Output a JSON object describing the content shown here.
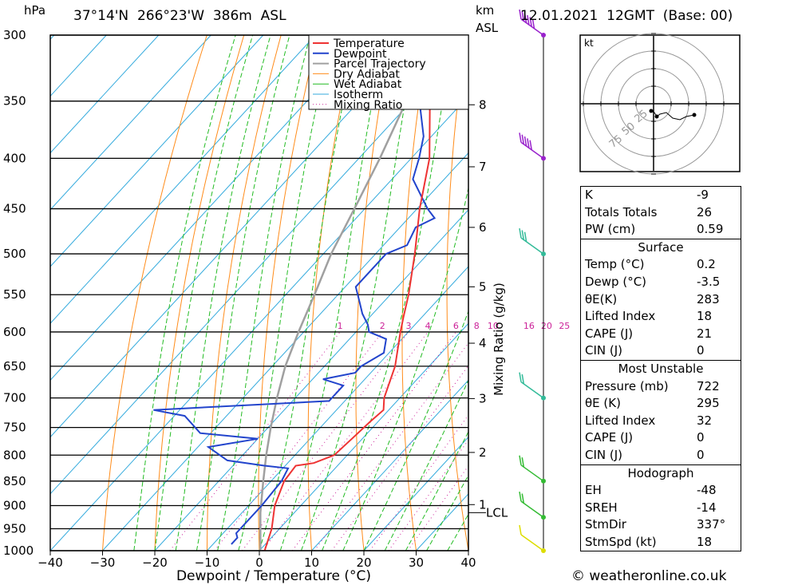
{
  "header": {
    "unit_left": "hPa",
    "location": "37°14'N  266°23'W  386m  ASL",
    "unit_right_top": "km",
    "unit_right_bottom": "ASL",
    "datetime": "12.01.2021  12GMT  (Base: 00)"
  },
  "chart_data": {
    "type": "line",
    "subtype": "skew-t log-p",
    "xlabel": "Dewpoint / Temperature (°C)",
    "ylabel_left": "hPa",
    "ylabel_right": "Mixing Ratio (g/kg)",
    "xlim": [
      -40,
      40
    ],
    "ylim": [
      1000,
      300
    ],
    "x_ticks": [
      -40,
      -30,
      -20,
      -10,
      0,
      10,
      20,
      30,
      40
    ],
    "pressure_levels": [
      300,
      350,
      400,
      450,
      500,
      550,
      600,
      650,
      700,
      750,
      800,
      850,
      900,
      950,
      1000
    ],
    "km_ticks": [
      {
        "label": "8",
        "p": 353
      },
      {
        "label": "7",
        "p": 408
      },
      {
        "label": "6",
        "p": 470
      },
      {
        "label": "5",
        "p": 540
      },
      {
        "label": "4",
        "p": 616
      },
      {
        "label": "3",
        "p": 701
      },
      {
        "label": "2",
        "p": 795
      },
      {
        "label": "1",
        "p": 898
      }
    ],
    "lcl": {
      "label": "LCL",
      "p": 915
    },
    "mixing_ratio_labels": [
      "1",
      "2",
      "3",
      "4",
      "6",
      "8",
      "10",
      "16",
      "20",
      "25"
    ],
    "mixing_ratio_values": [
      1,
      2,
      3,
      4,
      6,
      8,
      10,
      16,
      20,
      25
    ],
    "legend": [
      "Temperature",
      "Dewpoint",
      "Parcel Trajectory",
      "Dry Adiabat",
      "Wet Adiabat",
      "Isotherm",
      "Mixing Ratio"
    ],
    "legend_position": "top-right of plot",
    "colors": {
      "temperature": "#ee3333",
      "dewpoint": "#2244cc",
      "parcel": "#a0a0a0",
      "dry_adiabat": "#ff8c1a",
      "wet_adiabat": "#22bb22",
      "isotherm": "#33aadd",
      "mixing_ratio": "#cc2299",
      "wind_barb_upper": "#9922cc",
      "wind_barb_mid": "#33bb99",
      "wind_barb_low": "#33bb33",
      "wind_barb_surface": "#dddd00"
    },
    "series": [
      {
        "name": "Temperature",
        "points": [
          [
            1000,
            1.0
          ],
          [
            950,
            -1.5
          ],
          [
            900,
            -5.0
          ],
          [
            850,
            -7.5
          ],
          [
            820,
            -8.0
          ],
          [
            815,
            -5.0
          ],
          [
            800,
            -2.5
          ],
          [
            770,
            -2.0
          ],
          [
            740,
            -1.5
          ],
          [
            720,
            -1.0
          ],
          [
            700,
            -3.0
          ],
          [
            650,
            -6.5
          ],
          [
            600,
            -11.5
          ],
          [
            580,
            -13.5
          ],
          [
            550,
            -16.5
          ],
          [
            500,
            -22.5
          ],
          [
            450,
            -29.5
          ],
          [
            400,
            -36.5
          ],
          [
            350,
            -46.5
          ],
          [
            330,
            -51.5
          ],
          [
            300,
            -55.5
          ]
        ]
      },
      {
        "name": "Dewpoint",
        "points": [
          [
            985,
            -6.5
          ],
          [
            970,
            -6.5
          ],
          [
            960,
            -7.5
          ],
          [
            900,
            -7.5
          ],
          [
            850,
            -8.0
          ],
          [
            825,
            -9.0
          ],
          [
            820,
            -14.0
          ],
          [
            810,
            -22.0
          ],
          [
            785,
            -28.0
          ],
          [
            770,
            -20.0
          ],
          [
            760,
            -32.0
          ],
          [
            730,
            -38.0
          ],
          [
            720,
            -45.0
          ],
          [
            705,
            -13.0
          ],
          [
            680,
            -13.0
          ],
          [
            670,
            -18.0
          ],
          [
            660,
            -13.0
          ],
          [
            650,
            -13.0
          ],
          [
            630,
            -11.0
          ],
          [
            610,
            -13.0
          ],
          [
            600,
            -17.5
          ],
          [
            590,
            -19.0
          ],
          [
            575,
            -22.0
          ],
          [
            560,
            -24.5
          ],
          [
            540,
            -28.0
          ],
          [
            500,
            -28.0
          ],
          [
            490,
            -25.5
          ],
          [
            470,
            -27.0
          ],
          [
            460,
            -25.0
          ],
          [
            450,
            -28.0
          ],
          [
            420,
            -36.0
          ],
          [
            400,
            -38.5
          ],
          [
            380,
            -41.5
          ],
          [
            350,
            -48.5
          ],
          [
            330,
            -53.0
          ],
          [
            320,
            -52.0
          ],
          [
            300,
            -54.0
          ]
        ]
      },
      {
        "name": "Parcel Trajectory",
        "points": [
          [
            1000,
            0.2
          ],
          [
            915,
            -6.5
          ],
          [
            850,
            -11.5
          ],
          [
            800,
            -15.5
          ],
          [
            750,
            -19.5
          ],
          [
            700,
            -23.5
          ],
          [
            650,
            -27.5
          ],
          [
            600,
            -31.0
          ],
          [
            550,
            -34.5
          ],
          [
            500,
            -38.5
          ],
          [
            450,
            -42.0
          ],
          [
            400,
            -46.0
          ],
          [
            350,
            -51.0
          ],
          [
            300,
            -57.0
          ]
        ]
      }
    ],
    "wind_barbs": [
      {
        "p": 300,
        "kt": 60,
        "color": "wind_barb_upper"
      },
      {
        "p": 400,
        "kt": 50,
        "color": "wind_barb_upper"
      },
      {
        "p": 500,
        "kt": 25,
        "color": "wind_barb_mid"
      },
      {
        "p": 700,
        "kt": 20,
        "color": "wind_barb_mid"
      },
      {
        "p": 850,
        "kt": 15,
        "color": "wind_barb_low"
      },
      {
        "p": 925,
        "kt": 15,
        "color": "wind_barb_low"
      },
      {
        "p": 1000,
        "kt": 10,
        "color": "wind_barb_surface"
      }
    ]
  },
  "hodograph": {
    "unit": "kt",
    "ring_labels": [
      "25",
      "50",
      "75"
    ]
  },
  "indices": {
    "top": [
      {
        "label": "K",
        "value": "-9"
      },
      {
        "label": "Totals Totals",
        "value": "26"
      },
      {
        "label": "PW (cm)",
        "value": "0.59"
      }
    ],
    "surface": {
      "title": "Surface",
      "rows": [
        {
          "label": "Temp (°C)",
          "value": "0.2"
        },
        {
          "label": "Dewp (°C)",
          "value": "-3.5"
        },
        {
          "label": "θE(K)",
          "value": "283"
        },
        {
          "label": "Lifted Index",
          "value": "18"
        },
        {
          "label": "CAPE (J)",
          "value": "21"
        },
        {
          "label": "CIN (J)",
          "value": "0"
        }
      ]
    },
    "most_unstable": {
      "title": "Most Unstable",
      "rows": [
        {
          "label": "Pressure (mb)",
          "value": "722"
        },
        {
          "label": "θE (K)",
          "value": "295"
        },
        {
          "label": "Lifted Index",
          "value": "32"
        },
        {
          "label": "CAPE (J)",
          "value": "0"
        },
        {
          "label": "CIN (J)",
          "value": "0"
        }
      ]
    },
    "hodograph": {
      "title": "Hodograph",
      "rows": [
        {
          "label": "EH",
          "value": "-48"
        },
        {
          "label": "SREH",
          "value": "-14"
        },
        {
          "label": "StmDir",
          "value": "337°"
        },
        {
          "label": "StmSpd (kt)",
          "value": "18"
        }
      ]
    }
  },
  "footer": {
    "credit": "© weatheronline.co.uk"
  }
}
